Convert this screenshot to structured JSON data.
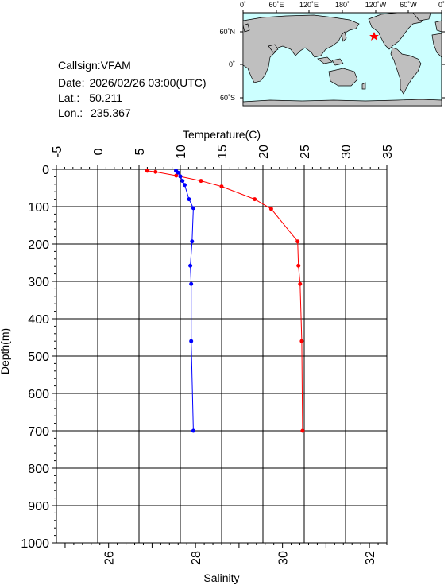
{
  "station": {
    "callsign_label": "Callsign:",
    "callsign": "VFAM",
    "date_label": "Date:",
    "date": "2026/02/26 03:00(UTC)",
    "lat_label": "Lat.:",
    "lat": "50.211",
    "lon_label": "Lon.:",
    "lon": "235.367"
  },
  "map": {
    "top_labels": [
      "0˚",
      "60˚E",
      "120˚E",
      "180˚",
      "120˚W",
      "60˚W",
      "0˚"
    ],
    "side_labels": [
      "60˚N",
      "0˚",
      "60˚S"
    ],
    "ocean_color": "#ccffff",
    "land_color": "#bfbfbf",
    "marker_color": "#ff0000"
  },
  "chart_data": {
    "type": "line",
    "y_axis": {
      "label": "Depth(m)",
      "range": [
        0,
        1000
      ],
      "inverted": true,
      "ticks": [
        0,
        100,
        200,
        300,
        400,
        500,
        600,
        700,
        800,
        900,
        1000
      ]
    },
    "top_axis": {
      "label": "Temperature(C)",
      "range": [
        -5,
        35
      ],
      "ticks": [
        -5,
        0,
        5,
        10,
        15,
        20,
        25,
        30,
        35
      ]
    },
    "bottom_axis": {
      "label": "Salinity",
      "range": [
        24.8,
        32.4
      ],
      "ticks": [
        26,
        28,
        30,
        32
      ]
    },
    "grid": true,
    "series": [
      {
        "axis": "temperature",
        "color": "#ff0000",
        "points": [
          [
            6.0,
            4
          ],
          [
            7.0,
            7
          ],
          [
            9.5,
            17
          ],
          [
            12.5,
            31
          ],
          [
            15.0,
            46
          ],
          [
            19.0,
            80
          ],
          [
            21.0,
            106
          ],
          [
            24.2,
            193
          ],
          [
            24.3,
            258
          ],
          [
            24.5,
            307
          ],
          [
            24.7,
            460
          ],
          [
            24.8,
            700
          ]
        ]
      },
      {
        "axis": "salinity",
        "color": "#0000ff",
        "points": [
          [
            27.55,
            4
          ],
          [
            27.6,
            9
          ],
          [
            27.65,
            19
          ],
          [
            27.7,
            31
          ],
          [
            27.75,
            42
          ],
          [
            27.85,
            80
          ],
          [
            27.95,
            104
          ],
          [
            27.92,
            193
          ],
          [
            27.88,
            258
          ],
          [
            27.9,
            307
          ],
          [
            27.9,
            460
          ],
          [
            27.95,
            700
          ]
        ]
      }
    ]
  }
}
